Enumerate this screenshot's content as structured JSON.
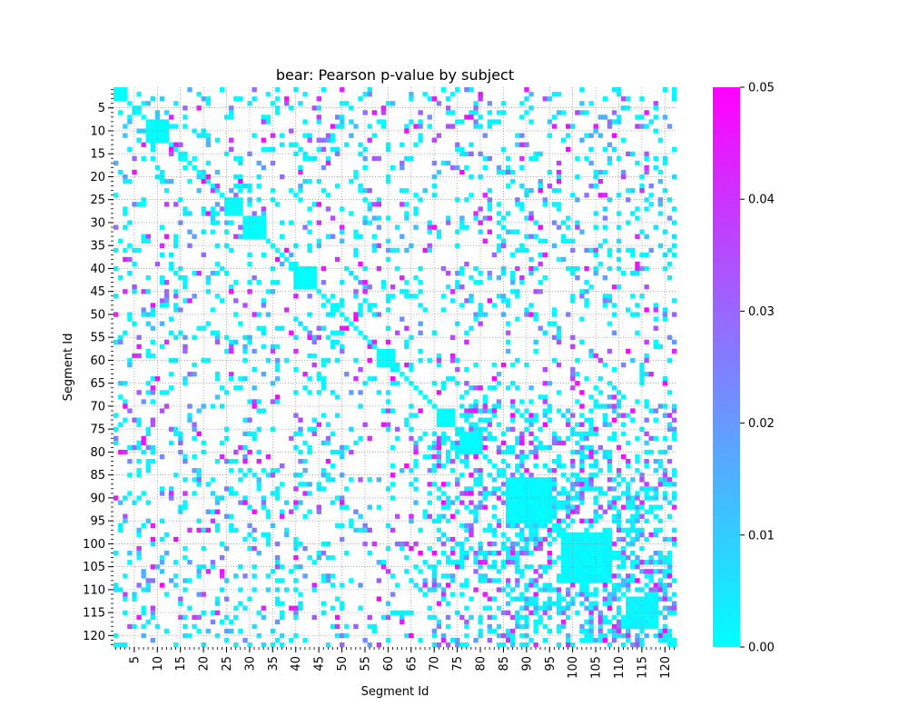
{
  "chart_data": {
    "type": "heatmap",
    "title": "bear: Pearson p-value by subject",
    "xlabel": "Segment Id",
    "ylabel": "Segment Id",
    "segment_range": [
      1,
      122
    ],
    "x_tick_labels": [
      "5",
      "10",
      "15",
      "20",
      "25",
      "30",
      "35",
      "40",
      "45",
      "50",
      "55",
      "60",
      "65",
      "70",
      "75",
      "80",
      "85",
      "90",
      "95",
      "100",
      "105",
      "110",
      "115",
      "120"
    ],
    "y_tick_labels": [
      "5",
      "10",
      "15",
      "20",
      "25",
      "30",
      "35",
      "40",
      "45",
      "50",
      "55",
      "60",
      "65",
      "70",
      "75",
      "80",
      "85",
      "90",
      "95",
      "100",
      "105",
      "110",
      "115",
      "120"
    ],
    "colorbar": {
      "range": [
        0.0,
        0.05
      ],
      "tick_labels": [
        "0.00",
        "0.01",
        "0.02",
        "0.03",
        "0.04",
        "0.05"
      ],
      "colormap": "cool",
      "low_color": "#00ffff",
      "high_color": "#ff00ff"
    },
    "grid": true,
    "blocks": [
      {
        "start": 1,
        "end": 3,
        "value": 0.0
      },
      {
        "start": 8,
        "end": 12,
        "value": 0.002
      },
      {
        "start": 25,
        "end": 28,
        "value": 0.003
      },
      {
        "start": 29,
        "end": 33,
        "value": 0.001
      },
      {
        "start": 40,
        "end": 44,
        "value": 0.002
      },
      {
        "start": 58,
        "end": 61,
        "value": 0.0
      },
      {
        "start": 71,
        "end": 74,
        "value": 0.002
      },
      {
        "start": 76,
        "end": 80,
        "value": 0.004
      },
      {
        "start": 86,
        "end": 95,
        "value": 0.004
      },
      {
        "start": 98,
        "end": 108,
        "value": 0.006
      },
      {
        "start": 112,
        "end": 118,
        "value": 0.008
      }
    ],
    "diagonal_value": 0.0,
    "fill_note": "off-diagonal scattered cells with p < 0.05; white cells are p >= 0.05"
  }
}
